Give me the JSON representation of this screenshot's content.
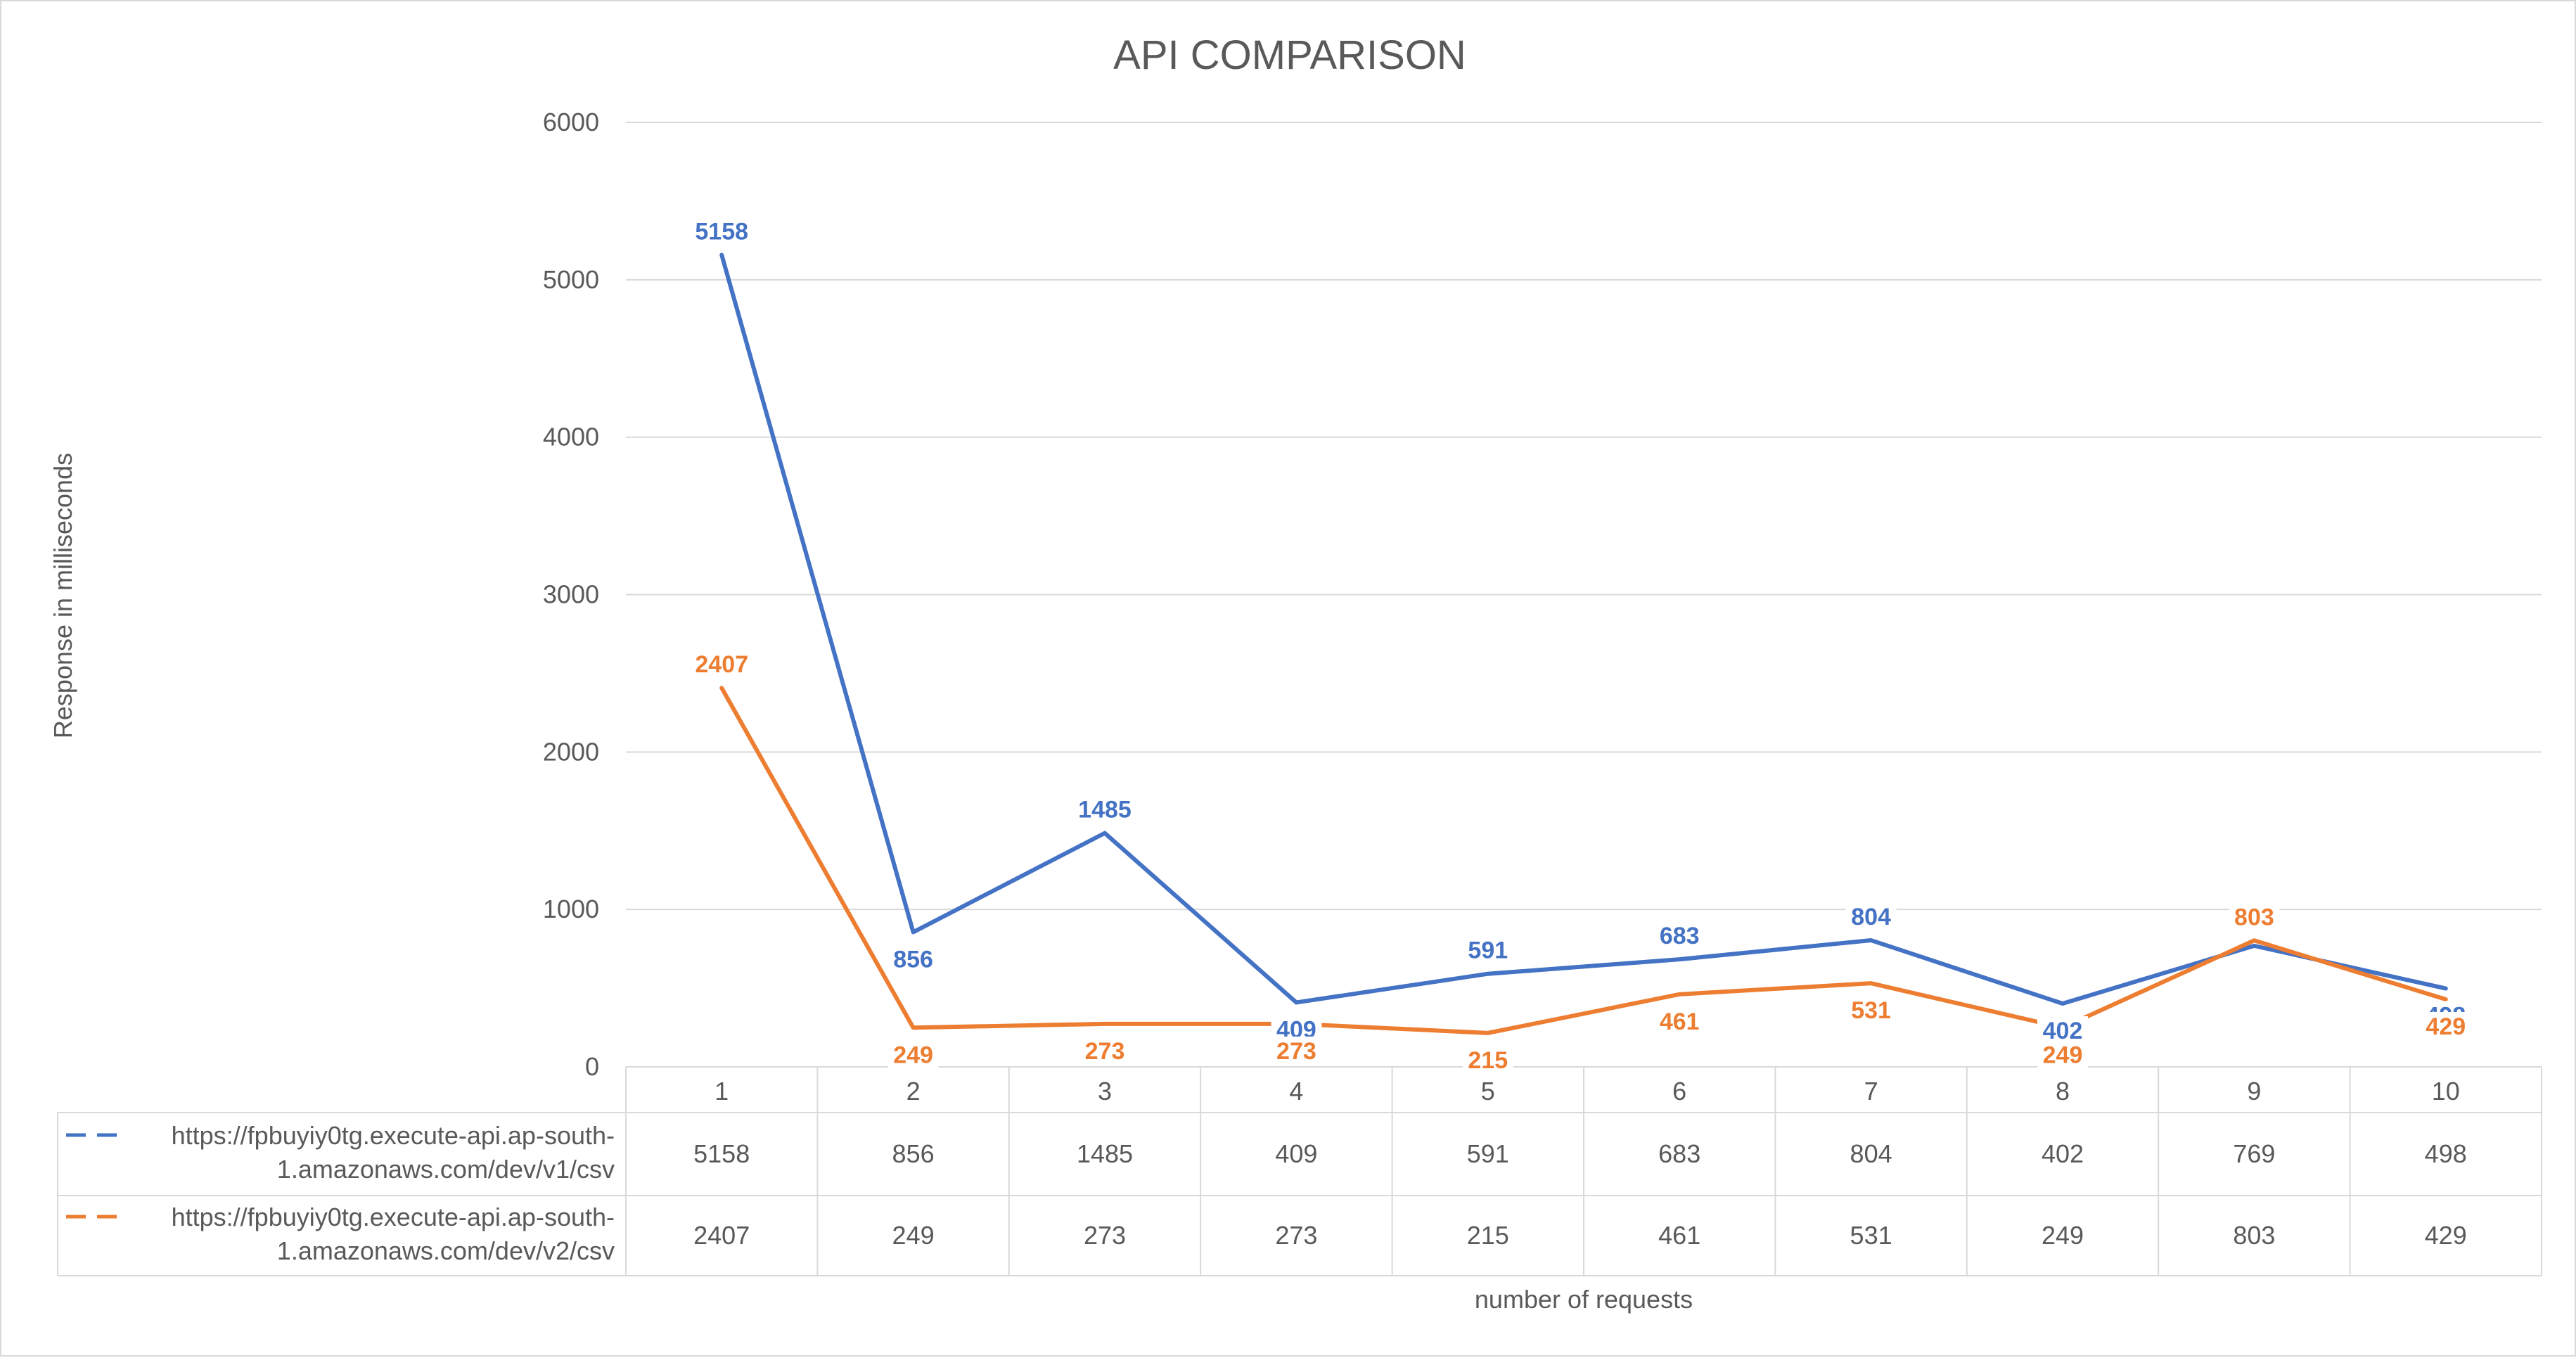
{
  "chart_data": {
    "type": "line",
    "title": "API COMPARISON",
    "xlabel": "number of requests",
    "ylabel": "Response in milliseconds",
    "categories": [
      "1",
      "2",
      "3",
      "4",
      "5",
      "6",
      "7",
      "8",
      "9",
      "10"
    ],
    "ylim": [
      0,
      6000
    ],
    "yticks": [
      0,
      1000,
      2000,
      3000,
      4000,
      5000,
      6000
    ],
    "grid": true,
    "legend": "data-table",
    "series": [
      {
        "name": "https://fpbuyiy0tg.execute-api.ap-south-1.amazonaws.com/dev/v1/csv",
        "name_lines": [
          "https://fpbuyiy0tg.execute-api.ap-south-",
          "1.amazonaws.com/dev/v1/csv"
        ],
        "color": "#4472c4",
        "values": [
          5158,
          856,
          1485,
          409,
          591,
          683,
          804,
          402,
          769,
          498
        ]
      },
      {
        "name": "https://fpbuyiy0tg.execute-api.ap-south-1.amazonaws.com/dev/v2/csv",
        "name_lines": [
          "https://fpbuyiy0tg.execute-api.ap-south-",
          "1.amazonaws.com/dev/v2/csv"
        ],
        "color": "#ed7d31",
        "values": [
          2407,
          249,
          273,
          273,
          215,
          461,
          531,
          249,
          803,
          429
        ]
      }
    ]
  }
}
